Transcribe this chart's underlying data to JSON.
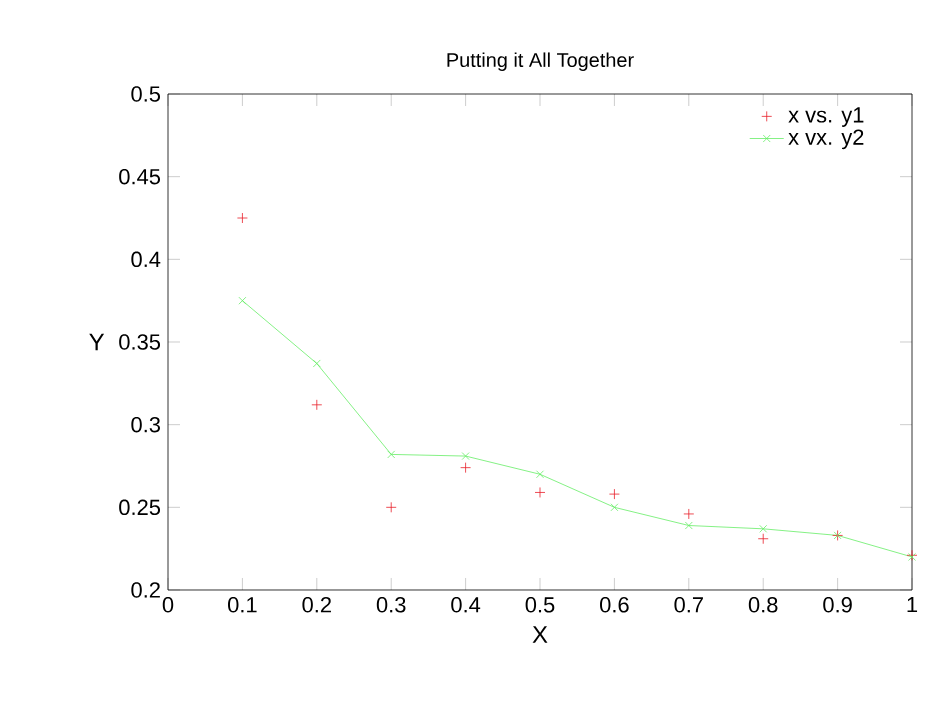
{
  "chart_data": {
    "type": "line",
    "title": "Putting it All Together",
    "xlabel": "X",
    "ylabel": "Y",
    "x": [
      0.1,
      0.2,
      0.3,
      0.4,
      0.5,
      0.6,
      0.7,
      0.8,
      0.9,
      1.0
    ],
    "series": [
      {
        "name": "x vs. y1",
        "type": "scatter",
        "color": "#e8202a",
        "marker": "cross",
        "values": [
          0.425,
          0.312,
          0.25,
          0.274,
          0.259,
          0.258,
          0.246,
          0.231,
          0.233,
          0.221
        ]
      },
      {
        "name": "x vx. y2",
        "color": "#66ee66",
        "marker": "cross",
        "line_style": "solid",
        "values": [
          0.375,
          0.337,
          0.282,
          0.281,
          0.27,
          0.25,
          0.239,
          0.237,
          0.233,
          0.22
        ]
      }
    ],
    "xlim": [
      0,
      1
    ],
    "ylim": [
      0.2,
      0.5
    ],
    "xticks": [
      0,
      0.1,
      0.2,
      0.3,
      0.4,
      0.5,
      0.6,
      0.7,
      0.8,
      0.9,
      1
    ],
    "yticks": [
      0.2,
      0.25,
      0.3,
      0.35,
      0.4,
      0.45,
      0.5
    ],
    "grid": false,
    "legend": "top right"
  }
}
